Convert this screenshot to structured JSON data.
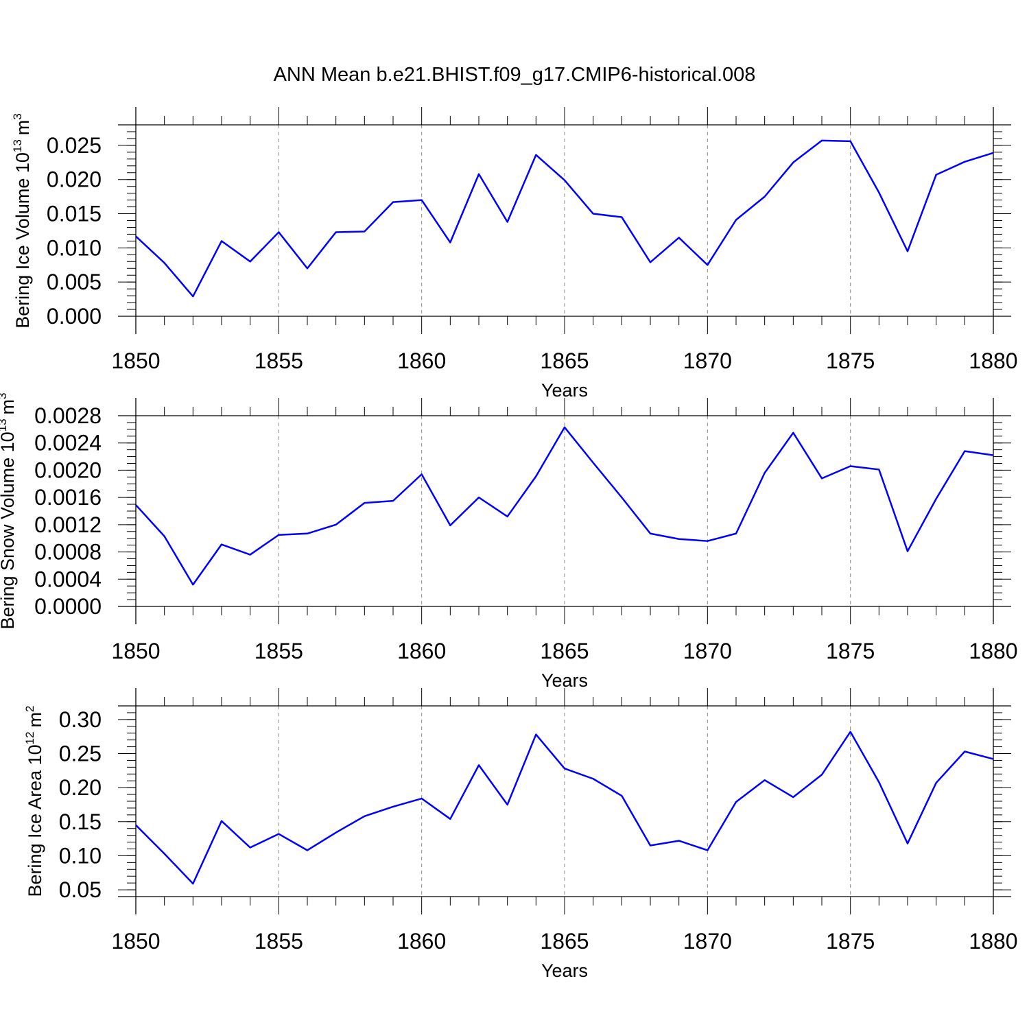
{
  "title": "ANN Mean b.e21.BHIST.f09_g17.CMIP6-historical.008",
  "colors": {
    "line": "#0000ff",
    "grid": "#888888",
    "frame": "#000000"
  },
  "chart_data": [
    {
      "type": "line",
      "ylabel_main": "Bering Ice Volume 10",
      "ylabel_exp": "13",
      "ylabel_unit": "m",
      "ylabel_unit_exp": "3",
      "xlabel": "Years",
      "xlim": [
        1850,
        1880
      ],
      "ylim": [
        0.0,
        0.028
      ],
      "x_ticks": [
        "1850",
        "1855",
        "1860",
        "1865",
        "1870",
        "1875",
        "1880"
      ],
      "y_tick_values": [
        0.0,
        0.005,
        0.01,
        0.015,
        0.02,
        0.025
      ],
      "y_ticks": [
        "0.000",
        "0.005",
        "0.010",
        "0.015",
        "0.020",
        "0.025"
      ],
      "y_minor_step": 0.001,
      "grid_x": [
        1855,
        1860,
        1865,
        1870,
        1875
      ],
      "series": [
        {
          "name": "Bering Ice Volume",
          "x": [
            1850,
            1851,
            1852,
            1853,
            1854,
            1855,
            1856,
            1857,
            1858,
            1859,
            1860,
            1861,
            1862,
            1863,
            1864,
            1865,
            1866,
            1867,
            1868,
            1869,
            1870,
            1871,
            1872,
            1873,
            1874,
            1875,
            1876,
            1877,
            1878,
            1879,
            1880
          ],
          "values": [
            0.0117,
            0.0078,
            0.0029,
            0.011,
            0.008,
            0.0123,
            0.007,
            0.0123,
            0.0124,
            0.0167,
            0.017,
            0.0108,
            0.0208,
            0.0138,
            0.0236,
            0.0199,
            0.015,
            0.0145,
            0.0079,
            0.0115,
            0.0075,
            0.0141,
            0.0175,
            0.0225,
            0.0257,
            0.0256,
            0.0181,
            0.0095,
            0.0207,
            0.0226,
            0.0239
          ]
        }
      ]
    },
    {
      "type": "line",
      "ylabel_main": "Bering Snow Volume 10",
      "ylabel_exp": "13",
      "ylabel_unit": "m",
      "ylabel_unit_exp": "3",
      "xlabel": "Years",
      "xlim": [
        1850,
        1880
      ],
      "ylim": [
        0.0,
        0.0028
      ],
      "x_ticks": [
        "1850",
        "1855",
        "1860",
        "1865",
        "1870",
        "1875",
        "1880"
      ],
      "y_tick_values": [
        0.0,
        0.0004,
        0.0008,
        0.0012,
        0.0016,
        0.002,
        0.0024,
        0.0028
      ],
      "y_ticks": [
        "0.0000",
        "0.0004",
        "0.0008",
        "0.0012",
        "0.0016",
        "0.0020",
        "0.0024",
        "0.0028"
      ],
      "y_minor_step": 0.0001,
      "grid_x": [
        1855,
        1860,
        1865,
        1870,
        1875
      ],
      "series": [
        {
          "name": "Bering Snow Volume",
          "x": [
            1850,
            1851,
            1852,
            1853,
            1854,
            1855,
            1856,
            1857,
            1858,
            1859,
            1860,
            1861,
            1862,
            1863,
            1864,
            1865,
            1866,
            1867,
            1868,
            1869,
            1870,
            1871,
            1872,
            1873,
            1874,
            1875,
            1876,
            1877,
            1878,
            1879,
            1880
          ],
          "values": [
            0.00149,
            0.00103,
            0.00032,
            0.00091,
            0.00076,
            0.00105,
            0.00107,
            0.0012,
            0.00152,
            0.00155,
            0.00194,
            0.00119,
            0.0016,
            0.00132,
            0.00191,
            0.00263,
            0.00211,
            0.0016,
            0.00107,
            0.00099,
            0.00096,
            0.00107,
            0.00196,
            0.00255,
            0.00188,
            0.00206,
            0.00201,
            0.00081,
            0.00158,
            0.00228,
            0.00222
          ]
        }
      ]
    },
    {
      "type": "line",
      "ylabel_main": "Bering Ice Area 10",
      "ylabel_exp": "12",
      "ylabel_unit": "m",
      "ylabel_unit_exp": "2",
      "xlabel": "Years",
      "xlim": [
        1850,
        1880
      ],
      "ylim": [
        0.04,
        0.32
      ],
      "x_ticks": [
        "1850",
        "1855",
        "1860",
        "1865",
        "1870",
        "1875",
        "1880"
      ],
      "y_tick_values": [
        0.05,
        0.1,
        0.15,
        0.2,
        0.25,
        0.3
      ],
      "y_ticks": [
        "0.05",
        "0.10",
        "0.15",
        "0.20",
        "0.25",
        "0.30"
      ],
      "y_minor_step": 0.01,
      "grid_x": [
        1855,
        1860,
        1865,
        1870,
        1875
      ],
      "series": [
        {
          "name": "Bering Ice Area",
          "x": [
            1850,
            1851,
            1852,
            1853,
            1854,
            1855,
            1856,
            1857,
            1858,
            1859,
            1860,
            1861,
            1862,
            1863,
            1864,
            1865,
            1866,
            1867,
            1868,
            1869,
            1870,
            1871,
            1872,
            1873,
            1874,
            1875,
            1876,
            1877,
            1878,
            1879,
            1880
          ],
          "values": [
            0.145,
            0.103,
            0.059,
            0.151,
            0.112,
            0.132,
            0.108,
            0.134,
            0.158,
            0.172,
            0.184,
            0.154,
            0.233,
            0.175,
            0.278,
            0.228,
            0.213,
            0.188,
            0.115,
            0.122,
            0.108,
            0.179,
            0.211,
            0.186,
            0.219,
            0.282,
            0.208,
            0.118,
            0.207,
            0.253,
            0.242
          ]
        }
      ]
    }
  ]
}
